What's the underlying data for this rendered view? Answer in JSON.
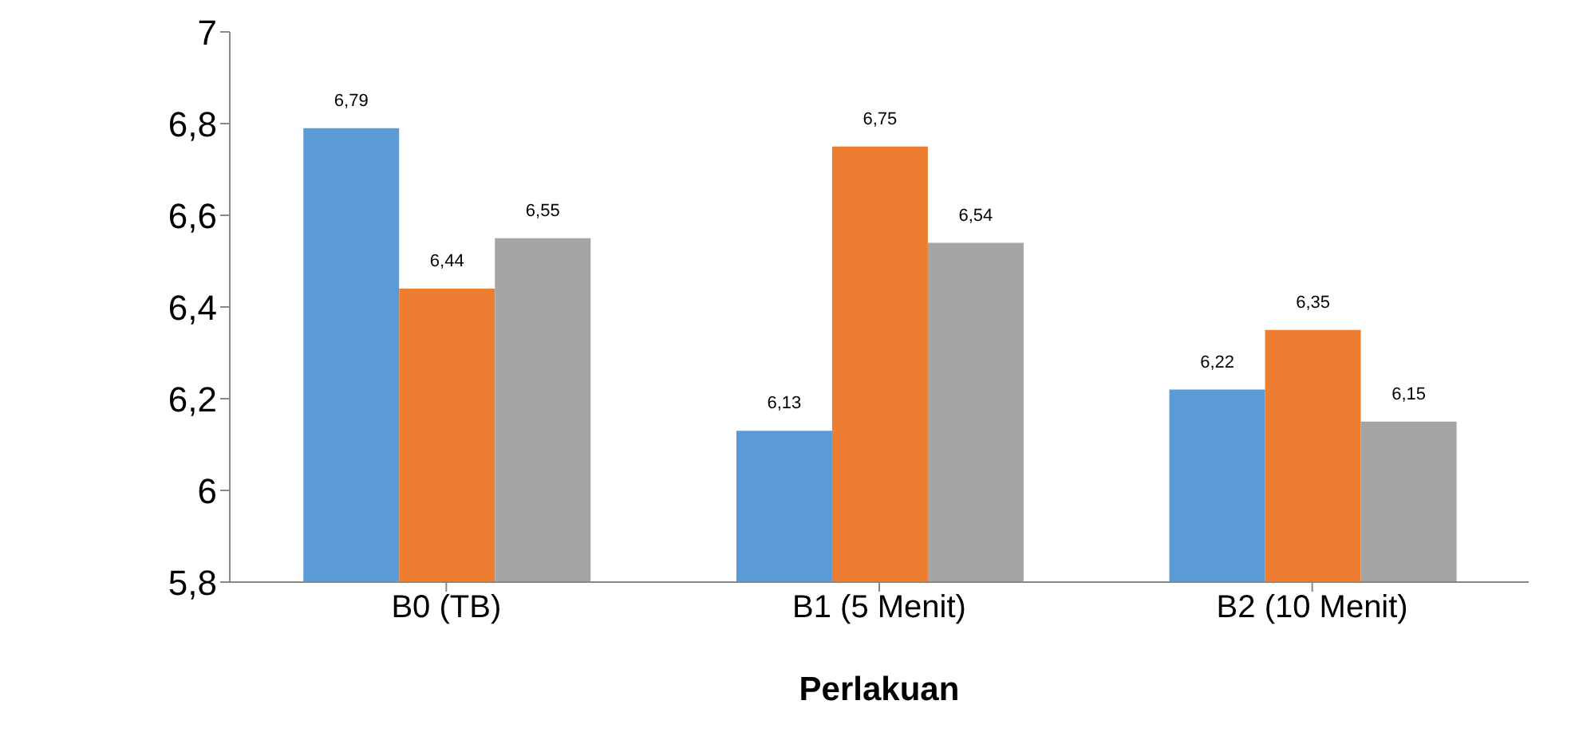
{
  "chart_data": {
    "type": "bar",
    "xlabel": "Perlakuan",
    "categories": [
      "B0 (TB)",
      "B1 (5 Menit)",
      "B2 (10 Menit)"
    ],
    "series": [
      {
        "color": "#5b9bd5",
        "values": [
          6.79,
          6.13,
          6.22
        ],
        "value_labels": [
          "6,79",
          "6,13",
          "6,22"
        ]
      },
      {
        "color": "#ed7d31",
        "values": [
          6.44,
          6.75,
          6.35
        ],
        "value_labels": [
          "6,44",
          "6,75",
          "6,35"
        ]
      },
      {
        "color": "#a5a5a5",
        "values": [
          6.55,
          6.54,
          6.15
        ],
        "value_labels": [
          "6,55",
          "6,54",
          "6,15"
        ]
      }
    ],
    "ylim": [
      5.8,
      7
    ],
    "yticks": [
      {
        "value": 5.8,
        "label": "5,8"
      },
      6,
      {
        "value": 6.2,
        "label": "6,2"
      },
      {
        "value": 6.4,
        "label": "6,4"
      },
      {
        "value": 6.6,
        "label": "6,6"
      },
      {
        "value": 6.8,
        "label": "6,8"
      },
      7
    ],
    "grid": false,
    "legend": false
  }
}
